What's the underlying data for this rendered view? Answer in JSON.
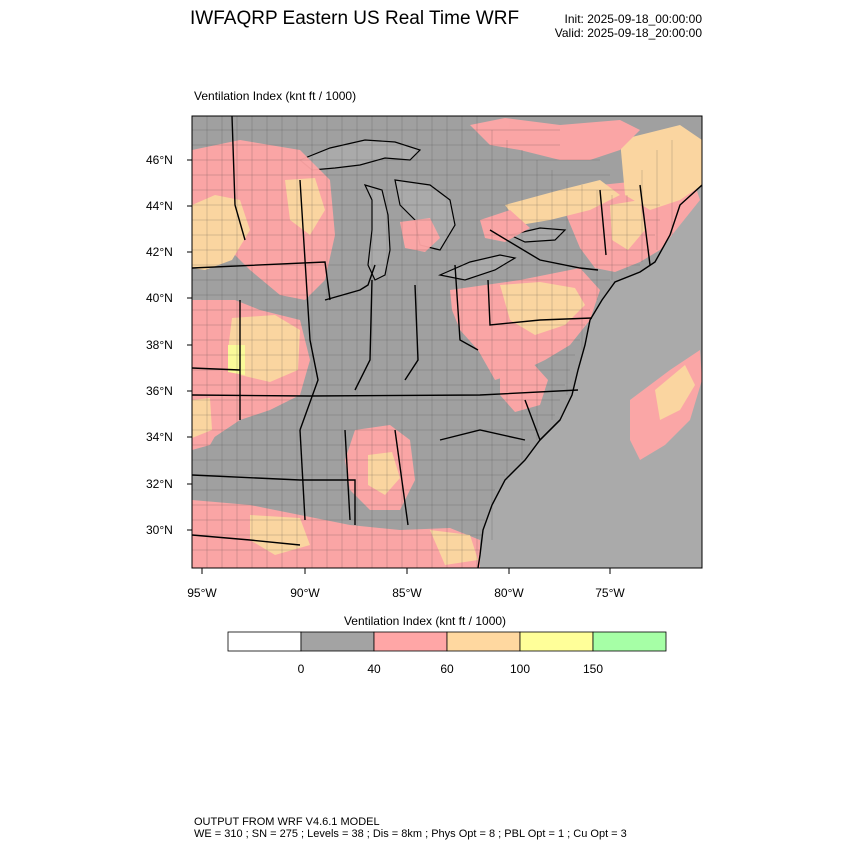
{
  "header": {
    "title": "IWFAQRP Eastern US Real Time WRF",
    "init": "Init: 2025-09-18_00:00:00",
    "valid": "Valid: 2025-09-18_20:00:00"
  },
  "map": {
    "field_label": "Ventilation Index   (knt ft / 1000)",
    "lat_labels": [
      "46°N",
      "44°N",
      "42°N",
      "40°N",
      "38°N",
      "36°N",
      "34°N",
      "32°N",
      "30°N"
    ],
    "lon_labels": [
      "95°W",
      "90°W",
      "85°W",
      "80°W",
      "75°W"
    ],
    "colors": {
      "ocean_gray": "#aaaaaa",
      "land_gray": "#a3a3a3",
      "pink": "#ffa6a6",
      "orange": "#ffd8a0",
      "yellow": "#ffff99",
      "green": "#a6ffa6"
    }
  },
  "colorbar": {
    "title": "Ventilation Index  (knt ft / 1000)",
    "ticks": [
      "0",
      "40",
      "60",
      "100",
      "150"
    ],
    "bins": [
      {
        "color": "#ffffff"
      },
      {
        "color": "#a3a3a3"
      },
      {
        "color": "#ffa6a6"
      },
      {
        "color": "#ffd8a0"
      },
      {
        "color": "#ffff99"
      },
      {
        "color": "#a6ffa6"
      }
    ]
  },
  "footer": {
    "line1": "OUTPUT FROM WRF V4.6.1 MODEL",
    "line2": "WE = 310 ; SN = 275 ; Levels = 38 ; Dis = 8km ; Phys Opt = 8 ; PBL Opt = 1 ; Cu Opt = 3"
  }
}
